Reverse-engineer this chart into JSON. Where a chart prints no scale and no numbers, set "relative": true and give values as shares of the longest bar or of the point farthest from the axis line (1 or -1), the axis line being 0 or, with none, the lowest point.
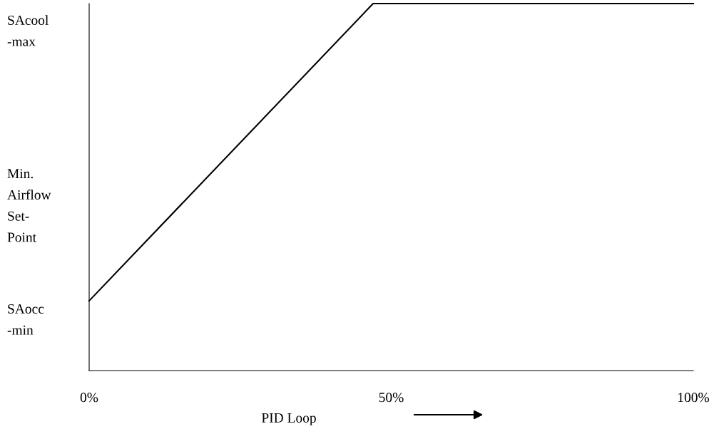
{
  "chart_data": {
    "type": "line",
    "relative": true,
    "xlabel": "PID Loop",
    "x": [
      0,
      47,
      100
    ],
    "values": [
      0.19,
      1,
      1
    ],
    "color": "#000000",
    "xlim": [
      0,
      100
    ],
    "xticks": [
      {
        "value": 0,
        "label": "0%"
      },
      {
        "value": 50,
        "label": "50%"
      },
      {
        "value": 100,
        "label": "100%"
      }
    ],
    "annotations": [
      "SAcool\n-max",
      "Min.\nAirflow\nSet-\nPoint",
      "SAocc\n-min"
    ],
    "grid": false,
    "legend": false,
    "marker": "none",
    "line_style": "solid"
  }
}
